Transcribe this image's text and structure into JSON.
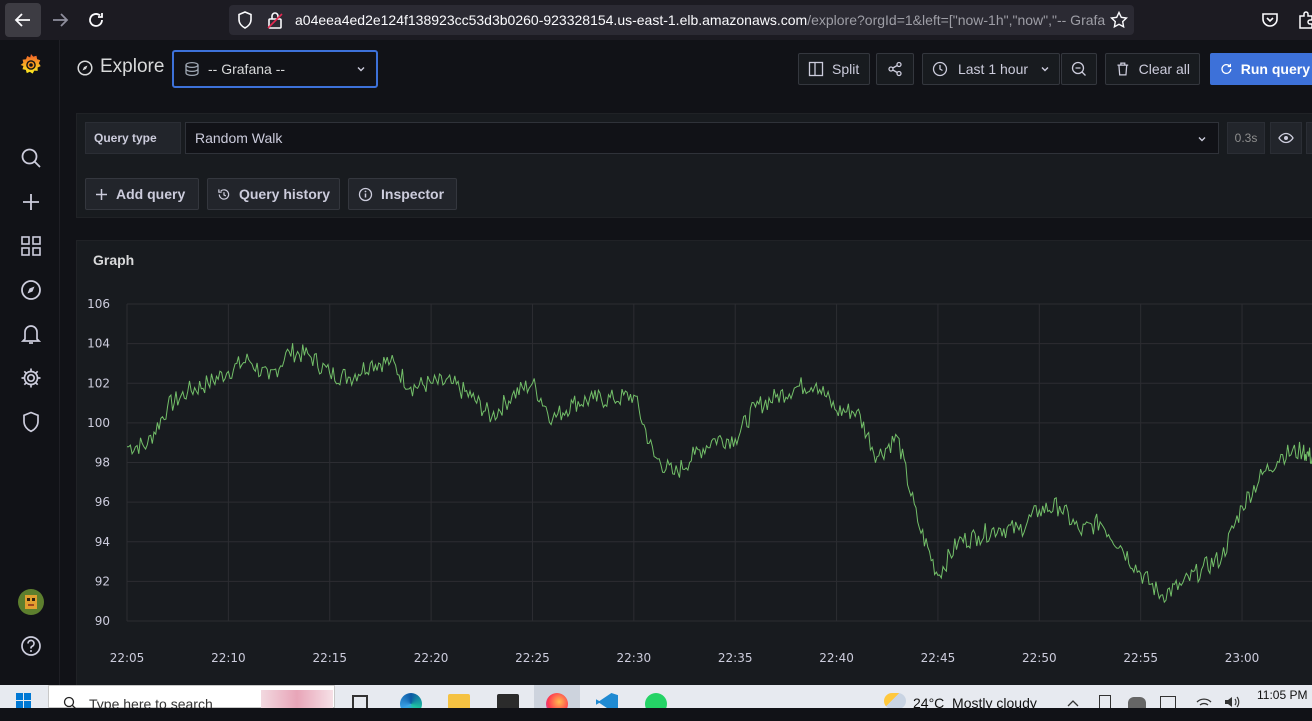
{
  "browser": {
    "url_main": "a04eea4ed2e124f138923cc53d3b0260-923328154.us-east-1.elb.amazonaws.com",
    "url_rest": "/explore?orgId=1&left=[\"now-1h\",\"now\",\"-- Grafa"
  },
  "header": {
    "title": "Explore",
    "datasource": "-- Grafana --",
    "split_label": "Split",
    "time_range": "Last 1 hour",
    "clear_label": "Clear all",
    "run_label": "Run query"
  },
  "query": {
    "type_label": "Query type",
    "type_value": "Random Walk",
    "duration": "0.3s",
    "add_query_label": "Add query",
    "history_label": "Query history",
    "inspector_label": "Inspector"
  },
  "graph": {
    "title": "Graph"
  },
  "chart_data": {
    "type": "line",
    "title": "Graph",
    "xlabel": "",
    "ylabel": "",
    "ylim": [
      89,
      106
    ],
    "yticks": [
      106,
      104,
      102,
      100,
      98,
      96,
      94,
      92,
      90
    ],
    "xticks": [
      "22:05",
      "22:10",
      "22:15",
      "22:20",
      "22:25",
      "22:30",
      "22:35",
      "22:40",
      "22:45",
      "22:50",
      "22:55",
      "23:00"
    ],
    "x_start_minutes": 0,
    "x_end_minutes": 58.5,
    "color": "#73bf69",
    "grid": true,
    "series": [
      {
        "name": "",
        "x": [
          0,
          1,
          2,
          3,
          4,
          5,
          6,
          7,
          8,
          9,
          10,
          11,
          12,
          13,
          14,
          15,
          16,
          17,
          18,
          19,
          20,
          21,
          22,
          23,
          24,
          25,
          26,
          27,
          28,
          29,
          30,
          31,
          32,
          33,
          34,
          35,
          36,
          37,
          38,
          39,
          40,
          41,
          42,
          43,
          44,
          45,
          46,
          47,
          48,
          49,
          50,
          51,
          52,
          53,
          54,
          55,
          56,
          57,
          58,
          58.5
        ],
        "values": [
          98.8,
          98.9,
          100.8,
          101.6,
          102.0,
          102.6,
          103.2,
          102.2,
          103.6,
          103.4,
          102.5,
          102.3,
          103.0,
          103.1,
          101.8,
          102.0,
          102.0,
          101.3,
          100.3,
          101.4,
          102.0,
          100.2,
          101.0,
          101.2,
          101.2,
          101.4,
          98.3,
          97.4,
          98.4,
          99.2,
          99.2,
          100.8,
          101.3,
          101.8,
          102.0,
          100.6,
          100.6,
          98.3,
          99.3,
          95.0,
          92.3,
          94.0,
          94.3,
          94.7,
          94.6,
          95.6,
          95.8,
          94.5,
          95.0,
          93.8,
          92.4,
          91.3,
          91.8,
          92.6,
          93.2,
          95.8,
          97.4,
          98.4,
          98.6,
          98.2
        ]
      }
    ]
  },
  "taskbar": {
    "search_placeholder": "Type here to search",
    "weather": "24°C  Mostly cloudy",
    "clock": "11:05 PM"
  }
}
